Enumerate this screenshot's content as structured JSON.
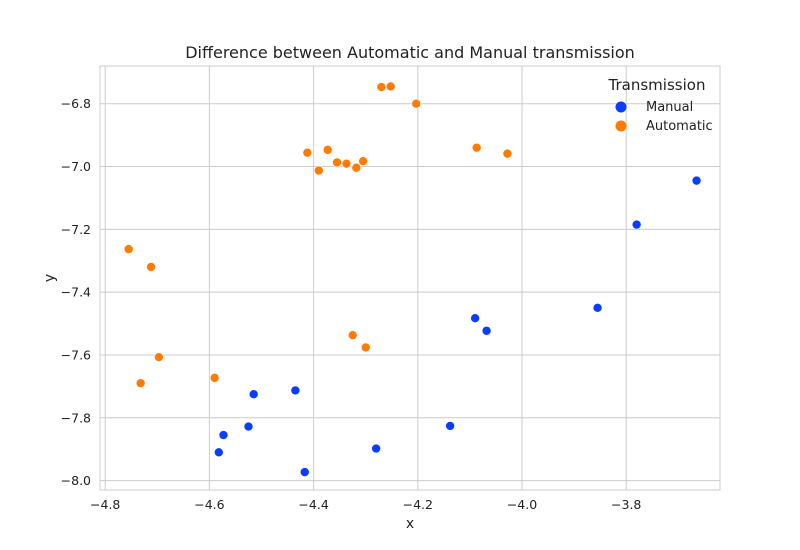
{
  "chart_data": {
    "type": "scatter",
    "title": "Difference between Automatic and Manual transmission",
    "xlabel": "x",
    "ylabel": "y",
    "xlim": [
      -4.81,
      -3.62
    ],
    "ylim": [
      -8.03,
      -6.68
    ],
    "xticks": [
      -4.8,
      -4.6,
      -4.4,
      -4.2,
      -4.0,
      -3.8
    ],
    "xtick_labels": [
      "−4.8",
      "−4.6",
      "−4.4",
      "−4.2",
      "−4.0",
      "−3.8"
    ],
    "yticks": [
      -6.8,
      -7.0,
      -7.2,
      -7.4,
      -7.6,
      -7.8,
      -8.0
    ],
    "ytick_labels": [
      "−6.8",
      "−7.0",
      "−7.2",
      "−7.4",
      "−7.6",
      "−7.8",
      "−8.0"
    ],
    "grid": true,
    "legend": {
      "title": "Transmission",
      "placement": "top-right"
    },
    "series": [
      {
        "name": "Manual",
        "color": "#0a3dff",
        "points": [
          [
            -3.665,
            -7.045
          ],
          [
            -3.78,
            -7.185
          ],
          [
            -3.855,
            -7.45
          ],
          [
            -4.09,
            -7.483
          ],
          [
            -4.068,
            -7.523
          ],
          [
            -4.138,
            -7.826
          ],
          [
            -4.28,
            -7.898
          ],
          [
            -4.417,
            -7.973
          ],
          [
            -4.435,
            -7.713
          ],
          [
            -4.515,
            -7.725
          ],
          [
            -4.525,
            -7.828
          ],
          [
            -4.573,
            -7.855
          ],
          [
            -4.582,
            -7.91
          ]
        ]
      },
      {
        "name": "Automatic",
        "color": "#ff7c00",
        "points": [
          [
            -4.252,
            -6.745
          ],
          [
            -4.27,
            -6.747
          ],
          [
            -4.203,
            -6.8
          ],
          [
            -4.087,
            -6.94
          ],
          [
            -4.028,
            -6.959
          ],
          [
            -4.373,
            -6.947
          ],
          [
            -4.412,
            -6.956
          ],
          [
            -4.355,
            -6.987
          ],
          [
            -4.337,
            -6.991
          ],
          [
            -4.305,
            -6.983
          ],
          [
            -4.318,
            -7.004
          ],
          [
            -4.39,
            -7.013
          ],
          [
            -4.755,
            -7.263
          ],
          [
            -4.712,
            -7.32
          ],
          [
            -4.325,
            -7.537
          ],
          [
            -4.3,
            -7.576
          ],
          [
            -4.697,
            -7.607
          ],
          [
            -4.59,
            -7.673
          ],
          [
            -4.732,
            -7.69
          ]
        ]
      }
    ]
  }
}
